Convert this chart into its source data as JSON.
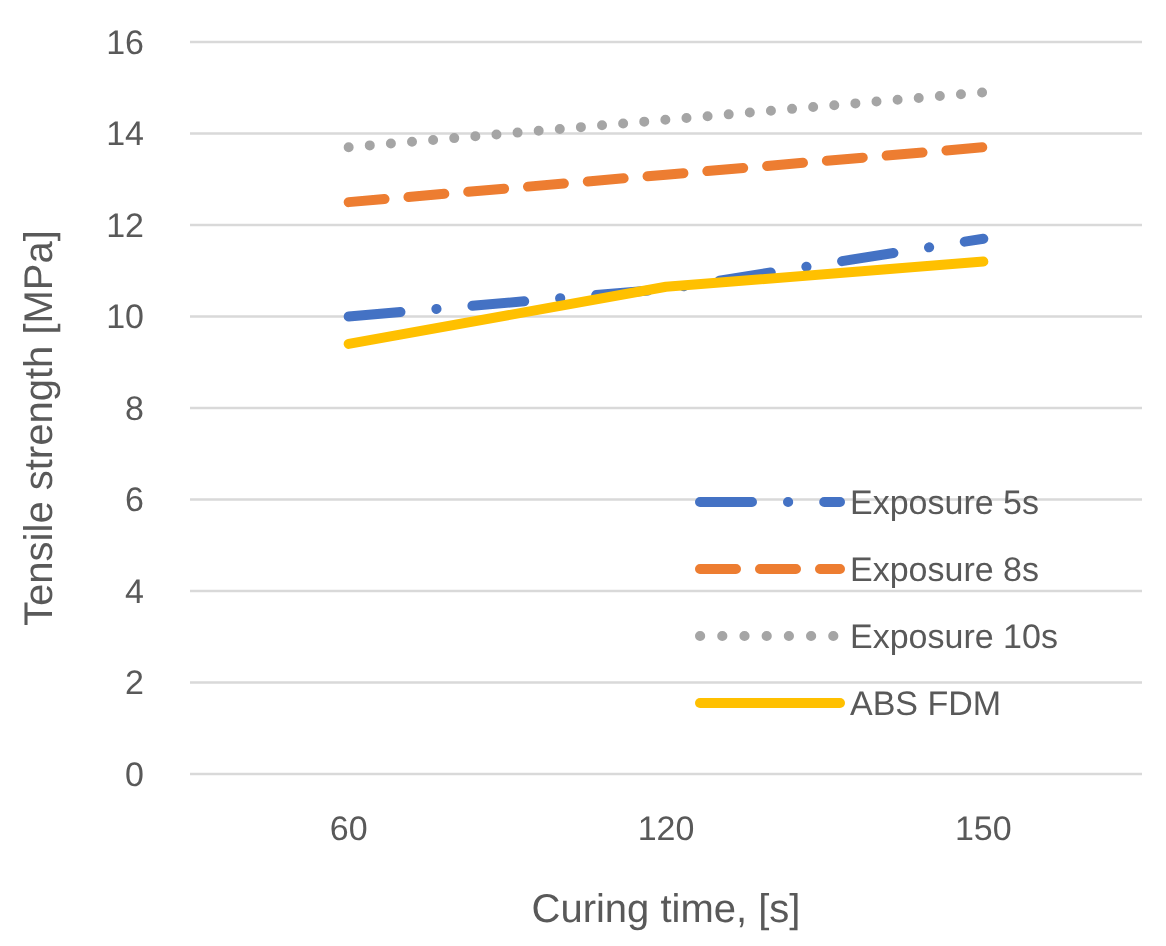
{
  "chart_data": {
    "type": "line",
    "xlabel": "Curing time, [s]",
    "ylabel": "Tensile strength [MPa]",
    "categories": [
      "60",
      "120",
      "150"
    ],
    "ylim": [
      0,
      16
    ],
    "yticks": [
      0,
      2,
      4,
      6,
      8,
      10,
      12,
      14,
      16
    ],
    "grid": "y",
    "legend": "bottom right",
    "marker": "none",
    "series": [
      {
        "name": "Exposure 5s",
        "color": "#4472c4",
        "line_style": "dashdot",
        "values": [
          10.0,
          10.6,
          11.7
        ]
      },
      {
        "name": "Exposure 8s",
        "color": "#ed7d31",
        "line_style": "dashed",
        "values": [
          12.5,
          13.1,
          13.7
        ]
      },
      {
        "name": "Exposure 10s",
        "color": "#a5a5a5",
        "line_style": "dotted",
        "values": [
          13.7,
          14.3,
          14.9
        ]
      },
      {
        "name": "ABS FDM",
        "color": "#ffc000",
        "line_style": "solid",
        "values": [
          9.4,
          10.65,
          11.2
        ]
      }
    ]
  }
}
